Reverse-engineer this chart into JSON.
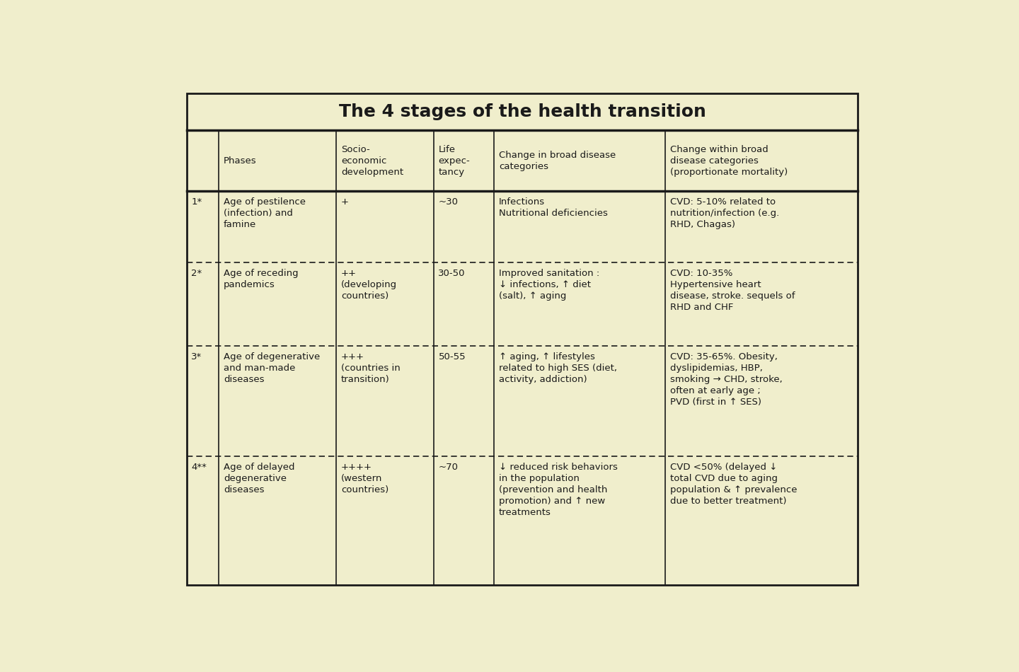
{
  "title": "The 4 stages of the health transition",
  "bg_color": "#f0eecc",
  "outer_bg": "#f0eecc",
  "border_color": "#1a1a1a",
  "text_color": "#1a1a1a",
  "title_fontsize": 18,
  "cell_fontsize": 9.5,
  "col_props": [
    0.048,
    0.175,
    0.145,
    0.09,
    0.255,
    0.287
  ],
  "header_texts": [
    "Phases",
    "Socio-\neconomic\ndevelopment",
    "Life\nexpec-\ntancy",
    "Change in broad disease\ncategories",
    "Change within broad\ndisease categories\n(proportionate mortality)"
  ],
  "rows": [
    {
      "stage": "1*",
      "phase": "Age of pestilence\n(infection) and\nfamine",
      "socio": "+",
      "life": "~30",
      "disease_change": "Infections\nNutritional deficiencies",
      "within_change": "CVD: 5-10% related to\nnutrition/infection (e.g.\nRHD, Chagas)"
    },
    {
      "stage": "2*",
      "phase": "Age of receding\npandemics",
      "socio": "++\n(developing\ncountries)",
      "life": "30-50",
      "disease_change": "Improved sanitation :\n↓ infections, ↑ diet\n(salt), ↑ aging",
      "within_change": "CVD: 10-35%\nHypertensive heart\ndisease, stroke. sequels of\nRHD and CHF"
    },
    {
      "stage": "3*",
      "phase": "Age of degenerative\nand man-made\ndiseases",
      "socio": "+++\n(countries in\ntransition)",
      "life": "50-55",
      "disease_change": "↑ aging, ↑ lifestyles\nrelated to high SES (diet,\nactivity, addiction)",
      "within_change": "CVD: 35-65%. Obesity,\ndyslipidemias, HBP,\nsmoking → CHD, stroke,\noften at early age ;\nPVD (first in ↑ SES)"
    },
    {
      "stage": "4**",
      "phase": "Age of delayed\ndegenerative\ndiseases",
      "socio": "++++\n(western\ncountries)",
      "life": "~70",
      "disease_change": "↓ reduced risk behaviors\nin the population\n(prevention and health\npromotion) and ↑ new\ntreatments",
      "within_change": "CVD <50% (delayed ↓\ntotal CVD due to aging\npopulation & ↑ prevalence\ndue to better treatment)"
    }
  ]
}
